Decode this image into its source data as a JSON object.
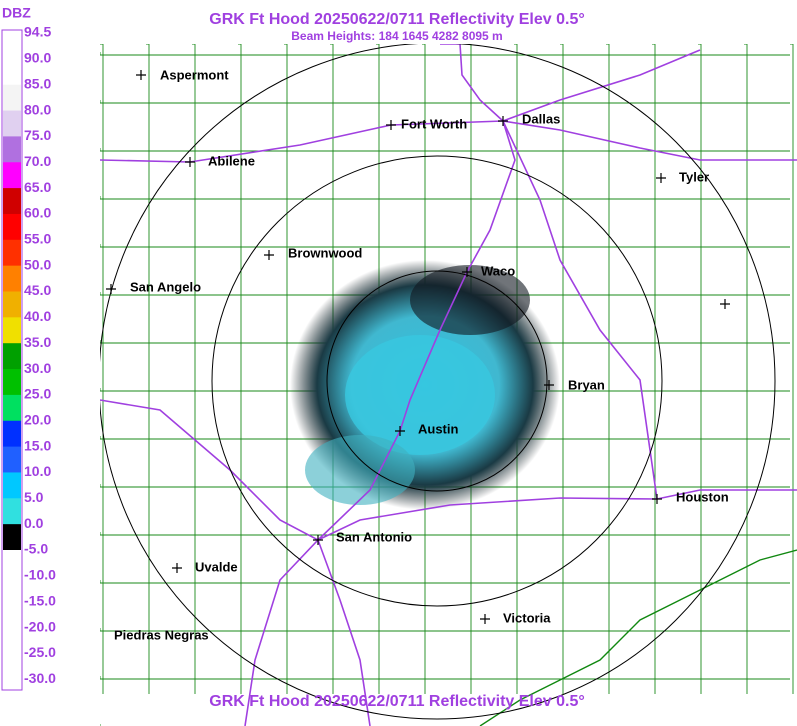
{
  "header": {
    "title": "GRK Ft Hood 20250622/0711 Reflectivity Elev 0.5°",
    "subtitle": "Beam Heights: 184 1645 4282 8095 m"
  },
  "legend": {
    "unit": "DBZ",
    "labels": [
      "94.5",
      "90.0",
      "85.0",
      "80.0",
      "75.0",
      "70.0",
      "65.0",
      "60.0",
      "55.0",
      "50.0",
      "45.0",
      "40.0",
      "35.0",
      "30.0",
      "25.0",
      "20.0",
      "15.0",
      "10.0",
      "5.0",
      "0.0",
      "-5.0",
      "-10.0",
      "-15.0",
      "-20.0",
      "-25.0",
      "-30.0"
    ],
    "colors": [
      "#ffffff",
      "#ffffff",
      "#f4f4f4",
      "#e0d0f0",
      "#b070e0",
      "#ff00ff",
      "#d00000",
      "#ff0000",
      "#ff3000",
      "#ff8000",
      "#f0b000",
      "#f0e000",
      "#00a000",
      "#00c000",
      "#00e060",
      "#0030ff",
      "#2060ff",
      "#00c8ff",
      "#30e0e0",
      "#000000",
      "#ffffff",
      "#ffffff",
      "#ffffff",
      "#ffffff",
      "#ffffff"
    ]
  },
  "cities": [
    "Aspermont",
    "Fort Worth",
    "Dallas",
    "Abilene",
    "Tyler",
    "Brownwood",
    "Waco",
    "San Angelo",
    "Bryan",
    "Austin",
    "Houston",
    "San Antonio",
    "Uvalde",
    "Piedras Negras",
    "Victoria"
  ]
}
